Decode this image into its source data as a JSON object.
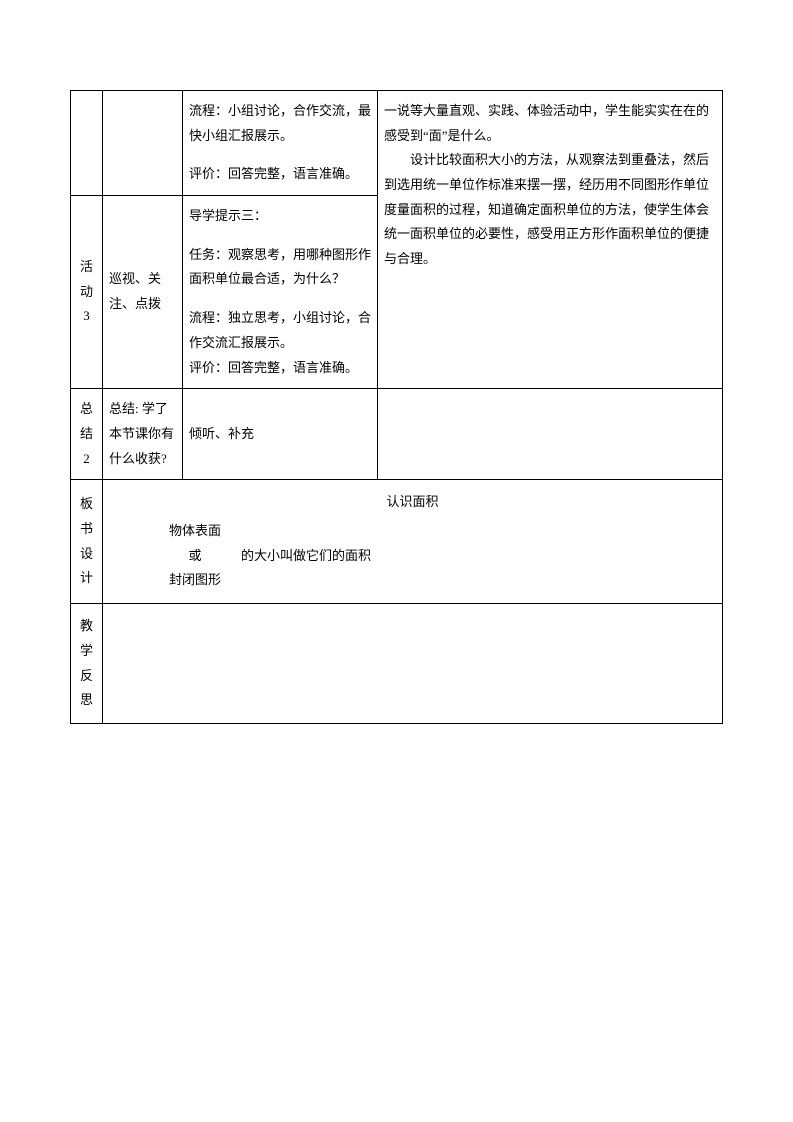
{
  "rows": {
    "activity_prev": {
      "col3_p1": "流程：小组讨论，合作交流，最快小组汇报展示。",
      "col3_p2": "评价：回答完整，语言准确。"
    },
    "activity3": {
      "label_l1": "活",
      "label_l2": "动",
      "label_l3": "3",
      "col2": "巡视、关注、点拨",
      "col3_p1": "导学提示三：",
      "col3_p2": "任务：观察思考，用哪种图形作面积单位最合适，为什么？",
      "col3_p3": "流程：独立思考，小组讨论，合作交流汇报展示。",
      "col3_p4": "评价：回答完整，语言准确。"
    },
    "col4_merged": {
      "p1": "一说等大量直观、实践、体验活动中，学生能实实在在的感受到“面”是什么。",
      "p2": "设计比较面积大小的方法，从观察法到重叠法，然后到选用统一单位作标准来摆一摆，经历用不同图形作单位度量面积的过程，知道确定面积单位的方法，使学生体会统一面积单位的必要性，感受用正方形作面积单位的便捷与合理。"
    },
    "summary": {
      "label_l1": "总",
      "label_l2": "结",
      "label_l3": "2",
      "col2": "总结: 学了本节课你有什么收获?",
      "col3": "倾听、补充"
    },
    "board": {
      "label_l1": "板",
      "label_l2": "书",
      "label_l3": "设",
      "label_l4": "计",
      "title": "认识面积",
      "left_l1": "物体表面",
      "left_l2": "或",
      "left_l3": "封闭图形",
      "right": "的大小叫做它们的面积"
    },
    "reflection": {
      "label_l1": "教",
      "label_l2": "学",
      "label_l3": "反",
      "label_l4": "思"
    }
  }
}
